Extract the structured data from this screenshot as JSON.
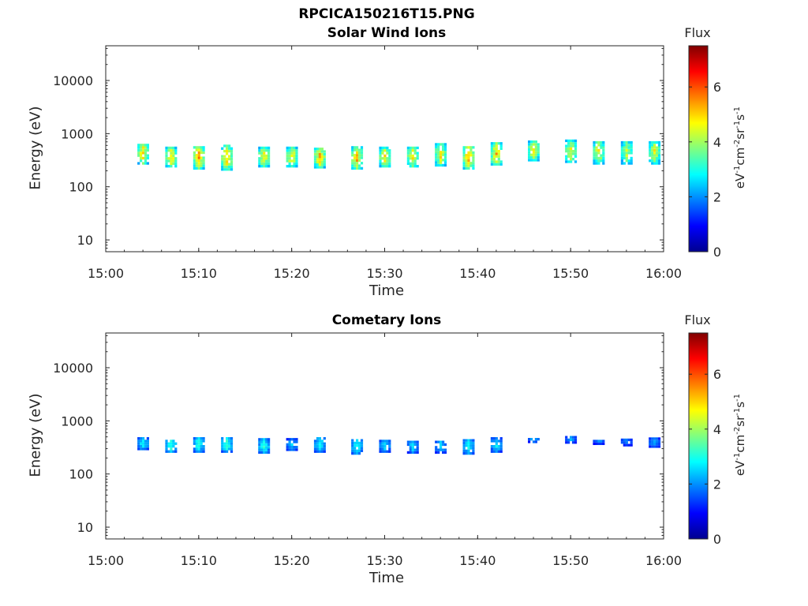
{
  "figure": {
    "title": "RPCICA150216T15.PNG"
  },
  "chart_data": [
    {
      "type": "heatmap",
      "title": "Solar Wind Ions",
      "xlabel": "Time",
      "ylabel": "Energy (eV)",
      "x_ticks": [
        "15:00",
        "15:10",
        "15:20",
        "15:30",
        "15:40",
        "15:50",
        "16:00"
      ],
      "xlim": [
        "15:00",
        "16:00"
      ],
      "y_scale": "log",
      "y_ticks": [
        "10",
        "100",
        "1000",
        "10000"
      ],
      "ylim": [
        6,
        45000
      ],
      "colorbar": {
        "label": "Flux",
        "unit": "eV-1cm-2sr-1s-1",
        "ticks": [
          "0",
          "2",
          "4",
          "6"
        ],
        "range": [
          0,
          7.5
        ]
      },
      "bursts": [
        {
          "time": "15:04",
          "e_low": 260,
          "e_high": 620,
          "peak_flux": 5.0
        },
        {
          "time": "15:07",
          "e_low": 230,
          "e_high": 520,
          "peak_flux": 5.1
        },
        {
          "time": "15:10",
          "e_low": 210,
          "e_high": 560,
          "peak_flux": 5.4
        },
        {
          "time": "15:13",
          "e_low": 200,
          "e_high": 560,
          "peak_flux": 5.2
        },
        {
          "time": "15:17",
          "e_low": 230,
          "e_high": 520,
          "peak_flux": 5.0
        },
        {
          "time": "15:20",
          "e_low": 230,
          "e_high": 520,
          "peak_flux": 5.0
        },
        {
          "time": "15:23",
          "e_low": 220,
          "e_high": 540,
          "peak_flux": 5.2
        },
        {
          "time": "15:27",
          "e_low": 210,
          "e_high": 520,
          "peak_flux": 5.2
        },
        {
          "time": "15:30",
          "e_low": 230,
          "e_high": 520,
          "peak_flux": 5.0
        },
        {
          "time": "15:33",
          "e_low": 230,
          "e_high": 560,
          "peak_flux": 4.9
        },
        {
          "time": "15:36",
          "e_low": 240,
          "e_high": 600,
          "peak_flux": 4.9
        },
        {
          "time": "15:39",
          "e_low": 210,
          "e_high": 560,
          "peak_flux": 5.4
        },
        {
          "time": "15:42",
          "e_low": 250,
          "e_high": 620,
          "peak_flux": 5.2
        },
        {
          "time": "15:46",
          "e_low": 300,
          "e_high": 700,
          "peak_flux": 4.8
        },
        {
          "time": "15:50",
          "e_low": 280,
          "e_high": 700,
          "peak_flux": 4.7
        },
        {
          "time": "15:53",
          "e_low": 260,
          "e_high": 700,
          "peak_flux": 4.8
        },
        {
          "time": "15:56",
          "e_low": 260,
          "e_high": 700,
          "peak_flux": 4.3
        },
        {
          "time": "15:59",
          "e_low": 260,
          "e_high": 700,
          "peak_flux": 4.6
        }
      ]
    },
    {
      "type": "heatmap",
      "title": "Cometary Ions",
      "xlabel": "Time",
      "ylabel": "Energy (eV)",
      "x_ticks": [
        "15:00",
        "15:10",
        "15:20",
        "15:30",
        "15:40",
        "15:50",
        "16:00"
      ],
      "xlim": [
        "15:00",
        "16:00"
      ],
      "y_scale": "log",
      "y_ticks": [
        "10",
        "100",
        "1000",
        "10000"
      ],
      "ylim": [
        6,
        45000
      ],
      "colorbar": {
        "label": "Flux",
        "unit": "eV-1cm-2sr-1s-1",
        "ticks": [
          "0",
          "2",
          "4",
          "6"
        ],
        "range": [
          0,
          7.5
        ]
      },
      "bursts": [
        {
          "time": "15:04",
          "e_low": 280,
          "e_high": 450,
          "peak_flux": 3.0
        },
        {
          "time": "15:07",
          "e_low": 250,
          "e_high": 430,
          "peak_flux": 3.3
        },
        {
          "time": "15:10",
          "e_low": 250,
          "e_high": 480,
          "peak_flux": 3.2
        },
        {
          "time": "15:13",
          "e_low": 250,
          "e_high": 470,
          "peak_flux": 3.3
        },
        {
          "time": "15:17",
          "e_low": 240,
          "e_high": 430,
          "peak_flux": 3.2
        },
        {
          "time": "15:20",
          "e_low": 270,
          "e_high": 430,
          "peak_flux": 2.6
        },
        {
          "time": "15:23",
          "e_low": 250,
          "e_high": 470,
          "peak_flux": 3.0
        },
        {
          "time": "15:27",
          "e_low": 230,
          "e_high": 430,
          "peak_flux": 3.1
        },
        {
          "time": "15:30",
          "e_low": 250,
          "e_high": 420,
          "peak_flux": 2.8
        },
        {
          "time": "15:33",
          "e_low": 240,
          "e_high": 420,
          "peak_flux": 2.7
        },
        {
          "time": "15:36",
          "e_low": 240,
          "e_high": 420,
          "peak_flux": 2.6
        },
        {
          "time": "15:39",
          "e_low": 230,
          "e_high": 440,
          "peak_flux": 3.0
        },
        {
          "time": "15:42",
          "e_low": 250,
          "e_high": 450,
          "peak_flux": 2.8
        },
        {
          "time": "15:46",
          "e_low": 380,
          "e_high": 470,
          "peak_flux": 2.4
        },
        {
          "time": "15:50",
          "e_low": 370,
          "e_high": 500,
          "peak_flux": 2.2
        },
        {
          "time": "15:53",
          "e_low": 350,
          "e_high": 430,
          "peak_flux": 2.2
        },
        {
          "time": "15:56",
          "e_low": 330,
          "e_high": 450,
          "peak_flux": 2.1
        },
        {
          "time": "15:59",
          "e_low": 310,
          "e_high": 450,
          "peak_flux": 2.4
        }
      ]
    }
  ]
}
